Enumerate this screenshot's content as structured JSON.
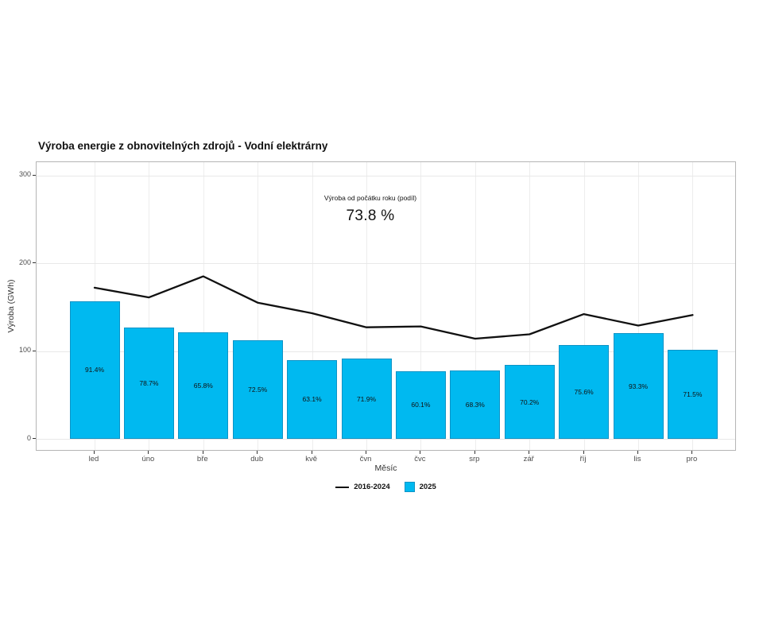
{
  "page": {
    "background": "#ffffff"
  },
  "chart_data": {
    "type": "bar",
    "title": "Výroba energie z obnovitelných zdrojů - Vodní elektrárny",
    "xlabel": "Měsíc",
    "ylabel": "Výroba (GWh)",
    "ylim": [
      0,
      300
    ],
    "yticks": [
      0,
      100,
      200,
      300
    ],
    "grid": true,
    "legend_position": "bottom",
    "categories": [
      "led",
      "úno",
      "bře",
      "dub",
      "kvě",
      "čvn",
      "čvc",
      "srp",
      "zář",
      "říj",
      "lis",
      "pro"
    ],
    "series": [
      {
        "name": "2016-2024",
        "type": "line",
        "color": "#111111",
        "values": [
          172,
          161,
          185,
          155,
          143,
          127,
          128,
          114,
          119,
          142,
          129,
          141
        ]
      },
      {
        "name": "2025",
        "type": "bar",
        "fill": "#00b9f0",
        "stroke": "#0c93c6",
        "values": [
          157,
          127,
          121,
          112,
          90,
          91,
          77,
          78,
          84,
          107,
          120,
          101
        ]
      }
    ],
    "bar_labels": [
      "91.4%",
      "78.7%",
      "65.8%",
      "72.5%",
      "63.1%",
      "71.9%",
      "60.1%",
      "68.3%",
      "70.2%",
      "75.6%",
      "93.3%",
      "71.5%"
    ],
    "annotation": {
      "label": "Výroba od počátku roku (podíl)",
      "value": "73.8 %"
    }
  }
}
